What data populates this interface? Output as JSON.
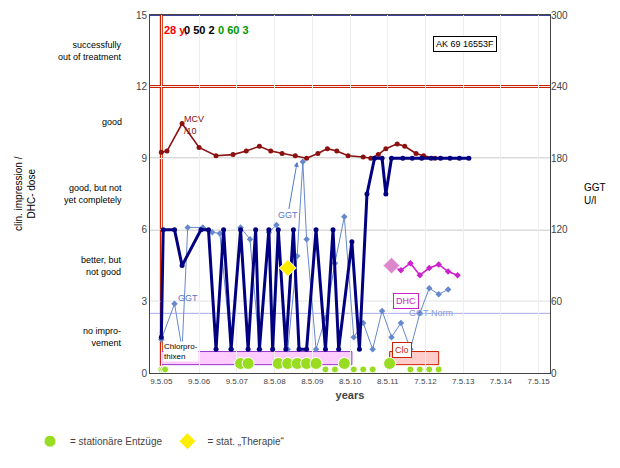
{
  "chart_data": {
    "type": "line",
    "xlabel": "years",
    "ylabel": "clin. impression /\nDHC- dose",
    "y2label": "GGT\nU/l",
    "xlim": [
      -0.3,
      10.3
    ],
    "xticks": [
      {
        "value": 0,
        "label": "9.5.05"
      },
      {
        "value": 1,
        "label": "9.5.06"
      },
      {
        "value": 2,
        "label": "9.5.07"
      },
      {
        "value": 3,
        "label": "8.5.08"
      },
      {
        "value": 4,
        "label": "8.5.09"
      },
      {
        "value": 5,
        "label": "8.5.10"
      },
      {
        "value": 6,
        "label": "8.5.11"
      },
      {
        "value": 7,
        "label": "7.5.12"
      },
      {
        "value": 8,
        "label": "7.5.13"
      },
      {
        "value": 9,
        "label": "7.5.14"
      },
      {
        "value": 10,
        "label": "7.5.15"
      }
    ],
    "ylim": [
      0,
      15
    ],
    "yticks": [
      0,
      3,
      6,
      9,
      12,
      15
    ],
    "y2lim": [
      0,
      300
    ],
    "y2ticks": [
      0,
      60,
      120,
      180,
      240,
      300
    ],
    "grid": true,
    "legend": "lower left",
    "y_category_labels": [
      {
        "value": 13.5,
        "label": "successfully\nout of treatment"
      },
      {
        "value": 10.5,
        "label": "good"
      },
      {
        "value": 7.5,
        "label": "good, but not\nyet completely"
      },
      {
        "value": 4.5,
        "label": "better, but\nnot good"
      },
      {
        "value": 1.5,
        "label": "no impro-\nvement"
      }
    ],
    "hlines": [
      {
        "value": 12,
        "color": "#cc2200",
        "line_style": "thick"
      },
      {
        "value": 9,
        "color": "#888888",
        "line_style": "thin"
      },
      {
        "value": 6,
        "color": "#888888",
        "line_style": "thin"
      },
      {
        "value": 3,
        "color": "#888888",
        "line_style": "thin"
      },
      {
        "value": 2.5,
        "color": "#aaaaee",
        "line_style": "thin"
      },
      {
        "value": 15.0,
        "color": "#000080",
        "line_style": "solid"
      }
    ],
    "vlines": [
      {
        "value": 0.0,
        "color": "#cc2200",
        "line_style": "thick"
      }
    ],
    "rects": [
      {
        "x": 0.0,
        "width": 5.05,
        "y": 0.35,
        "height": 0.55,
        "colors": [
          "#ffccff",
          "#9933cc"
        ]
      },
      {
        "x": 6.05,
        "width": 1.3,
        "y": 0.35,
        "height": 0.55,
        "colors": [
          "#ffcccc",
          "#cc2200"
        ]
      }
    ],
    "series": [
      {
        "type": "line",
        "color": "#8B1010",
        "marker": "circle",
        "line_style": "solid",
        "x": [
          0.0,
          0.15,
          0.55,
          1.0,
          1.45,
          1.9,
          2.25,
          2.6,
          2.9,
          3.2,
          3.55,
          3.85,
          4.15,
          4.4,
          4.65,
          4.95,
          5.35,
          5.55,
          5.75,
          5.95,
          6.25,
          6.45,
          6.75,
          6.95,
          7.25
        ],
        "values": [
          9.25,
          9.3,
          10.45,
          9.45,
          9.1,
          9.15,
          9.3,
          9.5,
          9.3,
          9.2,
          9.1,
          9.0,
          9.2,
          9.4,
          9.3,
          9.1,
          9.05,
          9.0,
          9.15,
          9.4,
          9.6,
          9.5,
          9.2,
          9.1,
          9.0
        ]
      },
      {
        "type": "line",
        "color": "#6688cc",
        "marker": "diamond",
        "line_style": "thin",
        "x": [
          0.0,
          0.35,
          0.55,
          0.7,
          1.1,
          1.35,
          1.55,
          1.85,
          2.1,
          2.35,
          2.6,
          2.85,
          3.05,
          3.35,
          3.6,
          3.75,
          3.85,
          4.1,
          4.35,
          4.6,
          4.85,
          5.1,
          5.35,
          5.6,
          5.85,
          6.1,
          6.35,
          6.6,
          6.85,
          7.1,
          7.35,
          7.6
        ],
        "values": [
          1.4,
          2.9,
          1.0,
          6.1,
          6.1,
          5.9,
          5.85,
          1.0,
          6.1,
          5.6,
          1.0,
          5.9,
          6.2,
          1.0,
          4.9,
          8.85,
          5.6,
          1.0,
          2.3,
          4.6,
          6.55,
          1.5,
          2.1,
          1.0,
          2.6,
          1.5,
          2.1,
          1.0,
          2.5,
          3.55,
          3.3,
          3.5
        ]
      },
      {
        "type": "line",
        "color": "#000080",
        "marker": "circle",
        "line_style": "thick",
        "x": [
          0.0,
          0.05,
          0.35,
          0.55,
          1.05,
          1.25,
          1.45,
          1.65,
          1.85,
          2.1,
          2.3,
          2.5,
          2.6,
          2.85,
          2.95,
          3.1,
          3.3,
          3.5,
          3.65,
          3.85,
          4.1,
          4.35,
          4.55,
          4.7,
          5.05,
          5.25,
          5.45,
          5.65,
          5.85,
          5.95,
          6.1,
          6.4,
          6.65,
          6.9,
          7.15,
          7.4,
          7.65,
          7.9,
          8.15
        ],
        "values": [
          1.5,
          6.0,
          6.0,
          4.5,
          6.0,
          6.0,
          1.0,
          6.0,
          1.0,
          6.0,
          1.0,
          6.0,
          1.0,
          6.0,
          1.0,
          6.0,
          1.0,
          6.0,
          1.0,
          1.0,
          6.0,
          1.0,
          6.0,
          1.0,
          5.5,
          1.0,
          7.5,
          9.0,
          9.0,
          7.5,
          9.0,
          9.0,
          9.0,
          9.0,
          9.0,
          9.0,
          9.0,
          9.0,
          9.0
        ]
      },
      {
        "type": "line",
        "color": "#cc22cc",
        "marker": "diamond",
        "line_style": "solid",
        "x": [
          6.1,
          6.35,
          6.6,
          6.85,
          7.1,
          7.35,
          7.6,
          7.85
        ],
        "values": [
          4.5,
          4.3,
          4.6,
          4.1,
          4.4,
          4.55,
          4.25,
          4.1
        ]
      },
      {
        "type": "scatter",
        "name": "= stationäre Entzüge",
        "color": "#99dd22",
        "marker": "big circle",
        "x": [
          2.1,
          2.3,
          3.1,
          3.35,
          3.6,
          3.85,
          4.1,
          4.85,
          6.05
        ],
        "values": [
          0.4,
          0.4,
          0.4,
          0.4,
          0.4,
          0.4,
          0.4,
          0.4,
          0.4
        ]
      },
      {
        "type": "scatter",
        "color": "#99dd22",
        "marker": "circle",
        "x": [
          0.0,
          0.05,
          0.1,
          4.35,
          4.6,
          5.1,
          5.35,
          5.6,
          6.6,
          6.85,
          7.1,
          7.35
        ],
        "values": [
          0.15,
          0.15,
          0.15,
          0.15,
          0.15,
          0.15,
          0.15,
          0.15,
          0.15,
          0.15,
          0.15,
          0.15
        ]
      },
      {
        "type": "scatter",
        "name": "= stat. „Therapie“",
        "color": "#ffee00",
        "marker": "big diamond",
        "x": [
          3.35
        ],
        "values": [
          4.4
        ]
      },
      {
        "type": "scatter",
        "color": "#dd88cc",
        "marker": "big diamond",
        "x": [
          6.1
        ],
        "values": [
          4.5
        ]
      }
    ],
    "title_parts": [
      {
        "text": "28 y,",
        "x": 0.02,
        "y": 14.7,
        "color": "red"
      },
      {
        "text": "0 50 2",
        "x": 0.55,
        "y": 14.7,
        "color": "black"
      },
      {
        "text": "0 60 3",
        "x": 1.45,
        "y": 14.7,
        "color": "#009900"
      }
    ],
    "labels": [
      {
        "text": "MCV\n/10",
        "x": 0.55,
        "y": 9.85,
        "color": "#8B1010"
      },
      {
        "text": "GGT-Norm",
        "x": 6.5,
        "y": 2.2,
        "color": "#8899dd"
      },
      {
        "text": "GGT",
        "x": 0.38,
        "y": 2.85,
        "color": "#5577cc"
      }
    ],
    "background_labels": [
      {
        "text": "Chlorpro-\nthixen",
        "x": 0.05,
        "y": 0.45,
        "color": "black"
      }
    ],
    "boxed_labels": [
      {
        "text": "Clo",
        "x": 6.1,
        "y": 0.95,
        "color": "#cc2200"
      },
      {
        "text": "DHC",
        "x": 6.15,
        "y": 3.0,
        "color": "#cc22cc"
      },
      {
        "text": "AK 69 16553F",
        "x": 7.2,
        "y": 13.8,
        "color": "black"
      }
    ],
    "arrows": [
      {
        "text": "GGT",
        "x": 3.6,
        "y": 8.85,
        "text_x": 3.35,
        "text_y": 6.6,
        "color": "#5577cc"
      }
    ]
  }
}
